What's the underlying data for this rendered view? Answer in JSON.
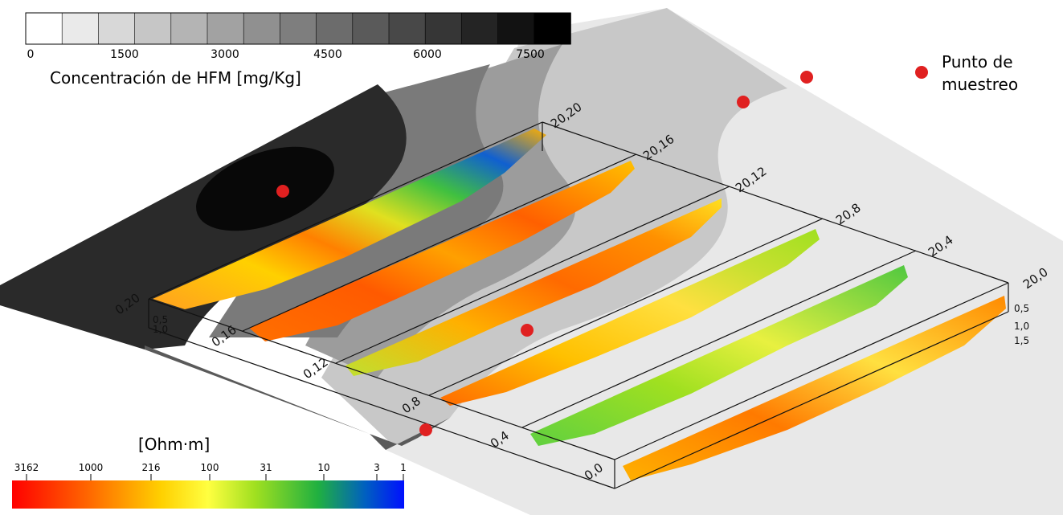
{
  "hfm_legend": {
    "title": "Concentración de HFM [mg/Kg]",
    "ticks": [
      "0",
      "1500",
      "3000",
      "4500",
      "6000",
      "7500"
    ],
    "swatches": [
      "#ffffff",
      "#eaeaea",
      "#d8d8d8",
      "#c6c6c6",
      "#b4b4b4",
      "#a2a2a2",
      "#909090",
      "#7e7e7e",
      "#6c6c6c",
      "#5a5a5a",
      "#484848",
      "#363636",
      "#242424",
      "#121212",
      "#000000"
    ]
  },
  "sampling_legend": {
    "label_line1": "Punto de",
    "label_line2": "muestreo",
    "marker_color": "#e02020"
  },
  "resistivity_legend": {
    "title": "[Ohm·m]",
    "ticks": [
      "3162",
      "1000",
      "216",
      "100",
      "31",
      "10",
      "3",
      "1"
    ],
    "colors": [
      "#ff0000",
      "#ff6a00",
      "#ffd000",
      "#ffff40",
      "#a0e020",
      "#20b040",
      "#0060c0",
      "#0010ff"
    ]
  },
  "profiles": {
    "front_labels": [
      "0,20",
      "0,16",
      "0,12",
      "0,8",
      "0,4",
      "0,0"
    ],
    "back_labels": [
      "20,20",
      "20,16",
      "20,12",
      "20,8",
      "20,4",
      "20,0"
    ],
    "depth_labels_front": [
      "0,5",
      "1,0"
    ],
    "depth_labels_back": [
      "0,5",
      "1,0",
      "1,5"
    ]
  }
}
